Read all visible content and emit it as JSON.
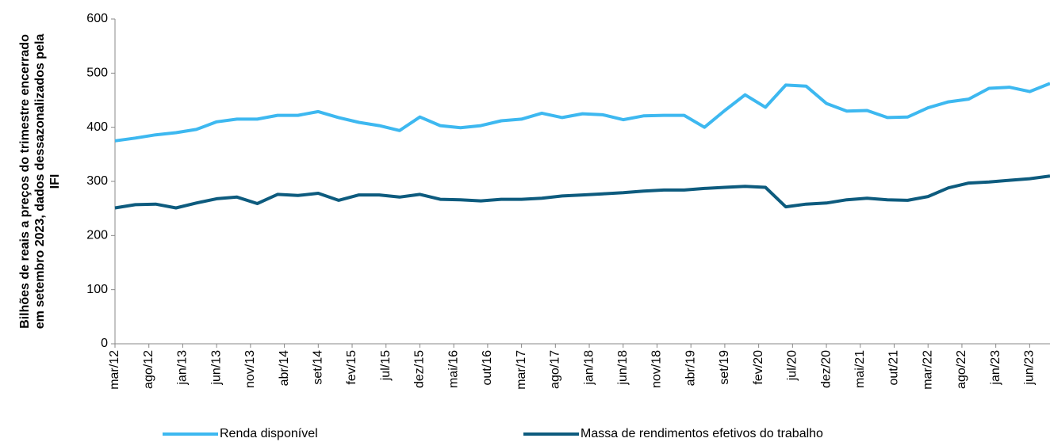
{
  "chart_data": {
    "type": "line",
    "y_label": [
      "Bilhões de reais a preços do trimestre encerrado",
      "em setembro 2023, dados dessazonalizados pela",
      "IFI"
    ],
    "x": [
      0,
      3,
      6,
      9,
      12,
      15,
      18,
      21,
      24,
      27,
      30,
      33,
      36,
      39,
      42,
      45,
      48,
      51,
      54,
      57,
      60,
      63,
      66,
      69,
      72,
      75,
      78,
      81,
      84,
      87,
      90,
      93,
      96,
      99,
      102,
      105,
      108,
      111,
      114,
      117,
      120,
      123,
      126,
      129,
      132,
      135,
      138
    ],
    "xlim": [
      0,
      138
    ],
    "xticks": [
      {
        "value": 0,
        "label": "mar/12"
      },
      {
        "value": 5,
        "label": "ago/12"
      },
      {
        "value": 10,
        "label": "jan/13"
      },
      {
        "value": 15,
        "label": "jun/13"
      },
      {
        "value": 20,
        "label": "nov/13"
      },
      {
        "value": 25,
        "label": "abr/14"
      },
      {
        "value": 30,
        "label": "set/14"
      },
      {
        "value": 35,
        "label": "fev/15"
      },
      {
        "value": 40,
        "label": "jul/15"
      },
      {
        "value": 45,
        "label": "dez/15"
      },
      {
        "value": 50,
        "label": "mai/16"
      },
      {
        "value": 55,
        "label": "out/16"
      },
      {
        "value": 60,
        "label": "mar/17"
      },
      {
        "value": 65,
        "label": "ago/17"
      },
      {
        "value": 70,
        "label": "jan/18"
      },
      {
        "value": 75,
        "label": "jun/18"
      },
      {
        "value": 80,
        "label": "nov/18"
      },
      {
        "value": 85,
        "label": "abr/19"
      },
      {
        "value": 90,
        "label": "set/19"
      },
      {
        "value": 95,
        "label": "fev/20"
      },
      {
        "value": 100,
        "label": "jul/20"
      },
      {
        "value": 105,
        "label": "dez/20"
      },
      {
        "value": 110,
        "label": "mai/21"
      },
      {
        "value": 115,
        "label": "out/21"
      },
      {
        "value": 120,
        "label": "mar/22"
      },
      {
        "value": 125,
        "label": "ago/22"
      },
      {
        "value": 130,
        "label": "jan/23"
      },
      {
        "value": 135,
        "label": "jun/23"
      }
    ],
    "ylim": [
      0,
      600
    ],
    "yticks": [
      0,
      100,
      200,
      300,
      400,
      500,
      600
    ],
    "series": [
      {
        "name": "Renda disponível",
        "color": "#3db8f0",
        "values": [
          375,
          380,
          386,
          390,
          396,
          410,
          415,
          415,
          422,
          422,
          429,
          418,
          409,
          403,
          394,
          419,
          403,
          399,
          403,
          412,
          415,
          426,
          418,
          425,
          423,
          414,
          421,
          422,
          422,
          400,
          431,
          460,
          437,
          478,
          476,
          444,
          430,
          431,
          418,
          419,
          436,
          447,
          452,
          472,
          474,
          466,
          481
        ]
      },
      {
        "name": "Massa de rendimentos efetivos do trabalho",
        "color": "#0d5b7e",
        "values": [
          251,
          257,
          258,
          251,
          260,
          268,
          271,
          259,
          276,
          274,
          278,
          265,
          275,
          275,
          271,
          276,
          267,
          266,
          264,
          267,
          267,
          269,
          273,
          275,
          277,
          279,
          282,
          284,
          284,
          287,
          289,
          291,
          289,
          253,
          258,
          260,
          266,
          269,
          266,
          265,
          272,
          288,
          297,
          299,
          302,
          305,
          310
        ]
      }
    ]
  }
}
